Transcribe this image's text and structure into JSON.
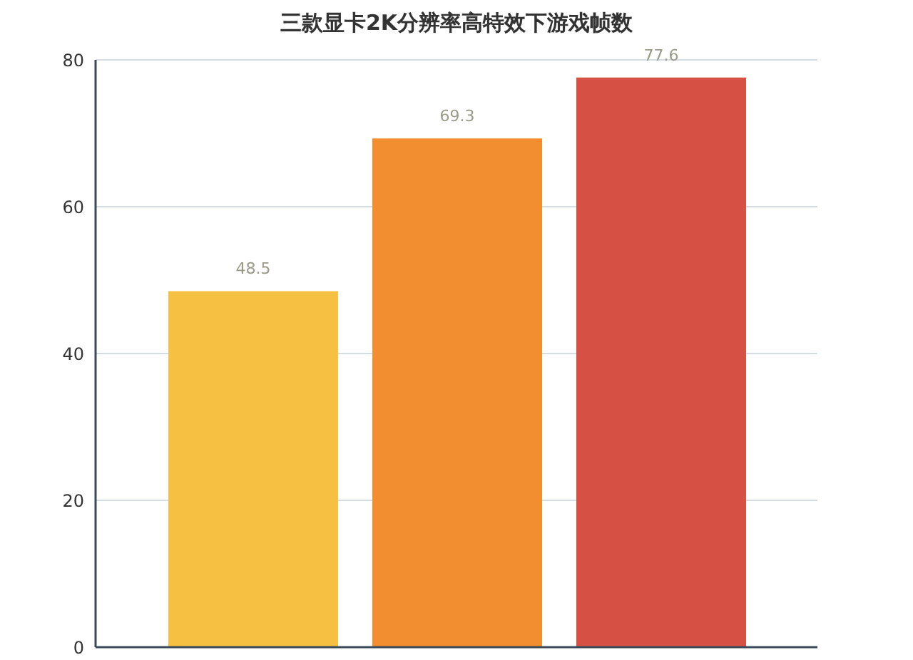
{
  "chart_data": {
    "type": "bar",
    "title": "三款显卡2K分辨率高特效下游戏帧数",
    "categories": [
      null
    ],
    "series": [
      {
        "color": "#f6c143",
        "values": [
          48.5
        ]
      },
      {
        "color": "#f28e2f",
        "values": [
          69.3
        ]
      },
      {
        "color": "#d65143",
        "values": [
          77.6
        ]
      }
    ],
    "ylim": [
      0,
      80
    ],
    "yticks": [
      0,
      20,
      40,
      60,
      80
    ],
    "grid": "y",
    "tick_labels": "y",
    "data_labels": true
  }
}
